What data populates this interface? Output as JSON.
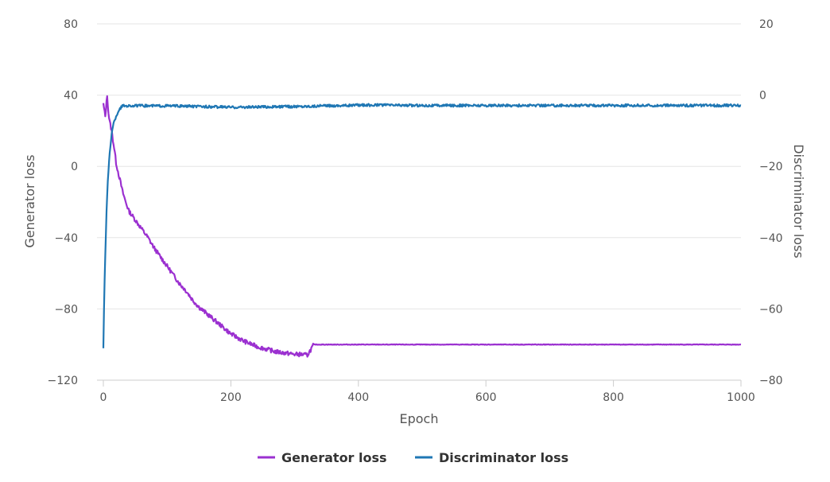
{
  "chart_data": {
    "type": "line",
    "xlabel": "Epoch",
    "xlim": [
      0,
      1000
    ],
    "x_ticks": [
      0,
      200,
      400,
      600,
      800,
      1000
    ],
    "y_left": {
      "label": "Generator loss",
      "lim": [
        -120,
        80
      ],
      "ticks": [
        -120,
        -80,
        -40,
        0,
        40,
        80
      ]
    },
    "y_right": {
      "label": "Discriminator loss",
      "lim": [
        -80,
        20
      ],
      "ticks": [
        -80,
        -60,
        -40,
        -20,
        0,
        20
      ]
    },
    "grid": true,
    "legend_position": "bottom-center",
    "series": [
      {
        "name": "Generator loss",
        "axis": "left",
        "color": "#9b30d0",
        "x": [
          0,
          3,
          6,
          8,
          10,
          13,
          15,
          18,
          20,
          25,
          30,
          35,
          40,
          50,
          60,
          70,
          80,
          90,
          100,
          110,
          120,
          130,
          140,
          150,
          160,
          170,
          180,
          190,
          200,
          210,
          220,
          230,
          240,
          250,
          260,
          270,
          280,
          290,
          300,
          310,
          320,
          330,
          400,
          500,
          600,
          700,
          800,
          900,
          1000
        ],
        "values": [
          35,
          28,
          40,
          30,
          25,
          20,
          15,
          8,
          2,
          -6,
          -14,
          -20,
          -25,
          -30,
          -35,
          -40,
          -46,
          -51,
          -56,
          -61,
          -66,
          -70,
          -75,
          -79,
          -82,
          -85,
          -88,
          -91,
          -94,
          -96,
          -98,
          -99.5,
          -101,
          -102,
          -103,
          -104,
          -104.5,
          -105,
          -105.5,
          -105.5,
          -106,
          -100,
          -100,
          -100,
          -100,
          -100,
          -100,
          -100,
          -100
        ]
      },
      {
        "name": "Discriminator loss",
        "axis": "right",
        "color": "#1f77b4",
        "x": [
          0,
          1,
          2,
          3,
          5,
          7,
          10,
          13,
          16,
          20,
          25,
          30,
          35,
          40,
          60,
          80,
          100,
          150,
          200,
          250,
          300,
          350,
          400,
          450,
          500,
          600,
          700,
          800,
          900,
          1000
        ],
        "values": [
          -71,
          -60,
          -52,
          -45,
          -33,
          -24,
          -16,
          -11,
          -8,
          -6,
          -4,
          -3,
          -3,
          -3,
          -3,
          -3,
          -3,
          -3.2,
          -3.4,
          -3.3,
          -3.2,
          -3,
          -2.8,
          -2.8,
          -2.9,
          -2.9,
          -2.9,
          -2.9,
          -2.9,
          -2.9
        ]
      }
    ]
  }
}
